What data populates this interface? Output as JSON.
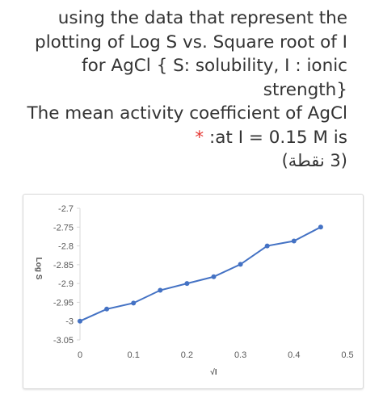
{
  "question": {
    "line1": "using the data that represent the",
    "line2": "plotting of Log S vs. Square root of I",
    "line3": "for AgCl { S: solubility, I : ionic",
    "line4": "strength}",
    "line5": "The mean activity coefficient of AgCl",
    "star": "*",
    "line6": ":at I = 0.15 M is",
    "points": "(3 نقطة)"
  },
  "chart_data": {
    "type": "line",
    "xlabel": "√I",
    "ylabel": "Log S",
    "xlim": [
      0,
      0.5
    ],
    "ylim": [
      -3.05,
      -2.7
    ],
    "x_ticks": [
      "0",
      "0.1",
      "0.2",
      "0.3",
      "0.4",
      "0.5"
    ],
    "y_ticks": [
      "-2.7",
      "-2.75",
      "-2.8",
      "-2.85",
      "-2.9",
      "-2.95",
      "-3",
      "-3.05"
    ],
    "grid": false,
    "legend": "none",
    "series": [
      {
        "color": "#4472c4",
        "x": [
          0,
          0.05,
          0.1,
          0.15,
          0.2,
          0.25,
          0.3,
          0.35,
          0.4,
          0.45
        ],
        "y": [
          -3.0,
          -2.968,
          -2.952,
          -2.918,
          -2.9,
          -2.882,
          -2.849,
          -2.8,
          -2.787,
          -2.75
        ]
      }
    ]
  }
}
